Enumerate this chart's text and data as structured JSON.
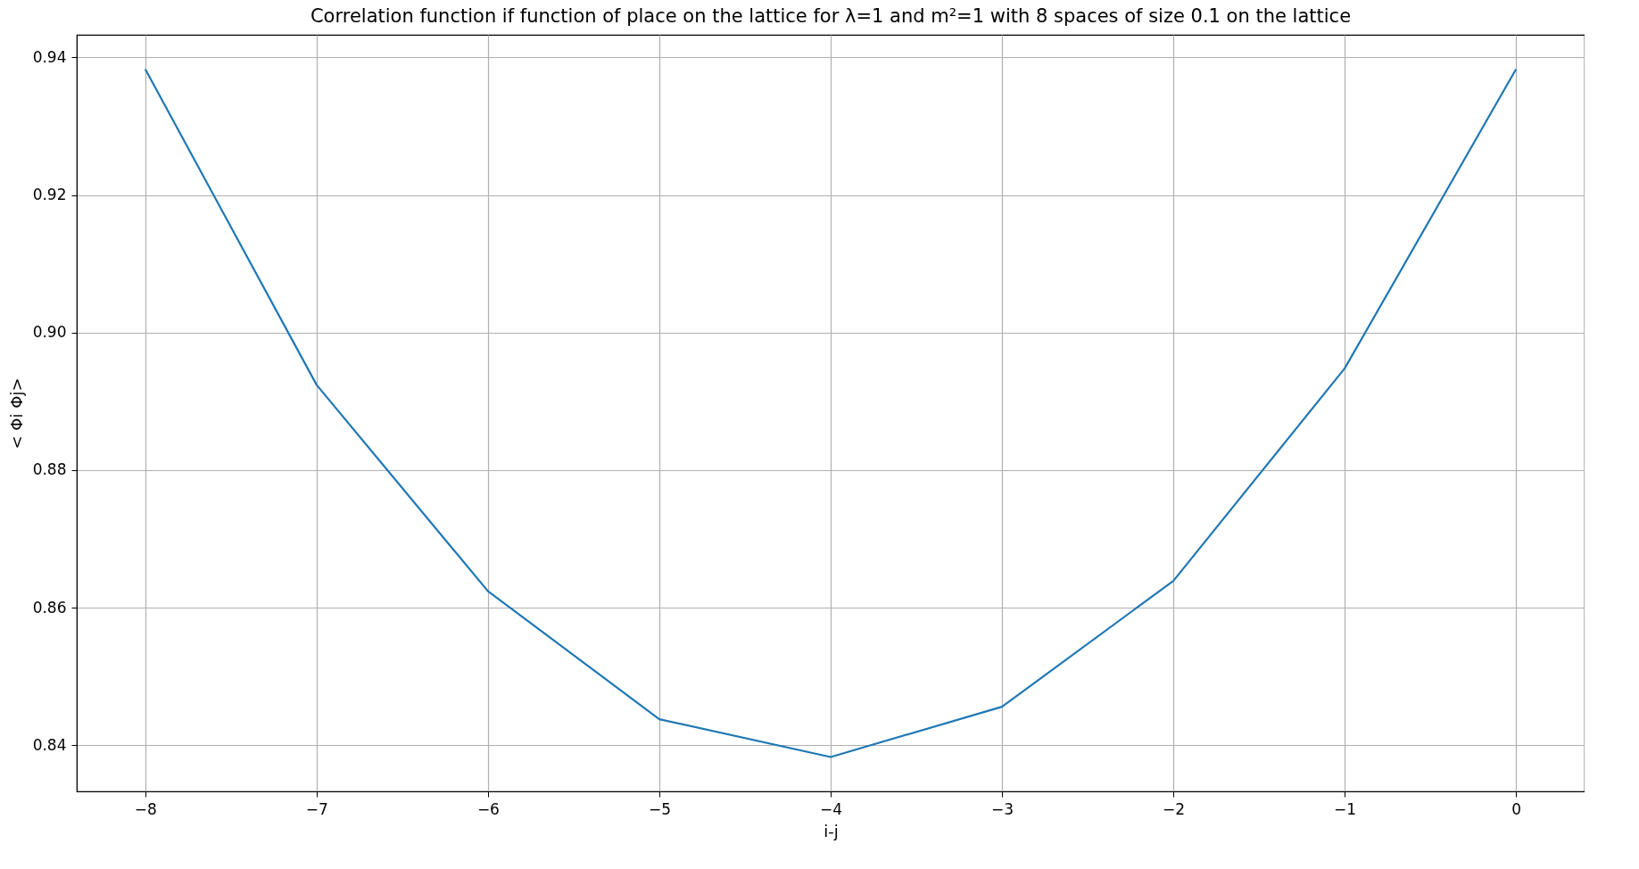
{
  "chart_data": {
    "type": "line",
    "title": "Correlation function if function of place on the lattice for λ=1 and  m²=1 with 8 spaces of size 0.1 on the lattice",
    "xlabel": "i-j",
    "ylabel": "< Φi Φj>",
    "x": [
      -8,
      -7,
      -6,
      -5,
      -4,
      -3,
      -2,
      -1,
      0
    ],
    "series": [
      {
        "color": "#1f77b4",
        "values": [
          0.9383,
          0.8924,
          0.8624,
          0.8438,
          0.8383,
          0.8456,
          0.8639,
          0.8948,
          0.9383
        ]
      }
    ],
    "xlim": [
      -8.4,
      0.4
    ],
    "ylim": [
      0.8333,
      0.9433
    ],
    "xticks": [
      -8,
      -7,
      -6,
      -5,
      -4,
      -3,
      -2,
      -1,
      0
    ],
    "yticks": [
      0.84,
      0.86,
      0.88,
      {
        "value": 0.9,
        "label": "0.90"
      },
      0.92,
      0.94
    ],
    "grid": true
  }
}
